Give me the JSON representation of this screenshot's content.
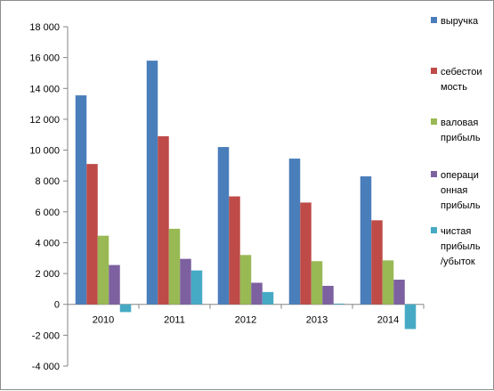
{
  "chart_data": {
    "type": "bar",
    "categories": [
      "2010",
      "2011",
      "2012",
      "2013",
      "2014"
    ],
    "series": [
      {
        "name": "выручка",
        "color": "#4a7ebb",
        "values": [
          13550,
          15800,
          10200,
          9450,
          8300
        ]
      },
      {
        "name": "себестоимость",
        "color": "#be4b48",
        "values": [
          9100,
          10900,
          7000,
          6600,
          5450
        ]
      },
      {
        "name": "валовая прибыль",
        "color": "#98b954",
        "values": [
          4450,
          4900,
          3200,
          2800,
          2850
        ]
      },
      {
        "name": "операционная прибыль",
        "color": "#7d60a0",
        "values": [
          2550,
          2950,
          1400,
          1200,
          1600
        ]
      },
      {
        "name": "чистая прибыль /убыток",
        "color": "#46aac5",
        "values": [
          -500,
          2200,
          800,
          50,
          -1600
        ]
      }
    ],
    "legend_lines": [
      [
        "выручка"
      ],
      [
        "себестои",
        "мость"
      ],
      [
        "валовая",
        "прибыль"
      ],
      [
        "операци",
        "онная",
        "прибыль"
      ],
      [
        "чистая",
        "прибыль",
        "/убыток"
      ]
    ],
    "y_ticks": [
      "18 000",
      "16 000",
      "14 000",
      "12 000",
      "10 000",
      "8 000",
      "6 000",
      "4 000",
      "2 000",
      "0",
      "-2 000",
      "-4 000"
    ],
    "ylim": [
      -4000,
      18000
    ],
    "title": "",
    "xlabel": "",
    "ylabel": "",
    "grid": false,
    "legend_position": "right"
  }
}
